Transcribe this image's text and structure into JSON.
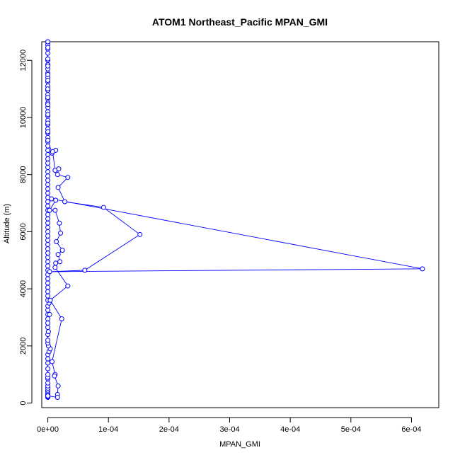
{
  "chart_data": {
    "type": "line",
    "title": "ATOM1 Northeast_Pacific MPAN_GMI",
    "xlabel": "MPAN_GMI",
    "ylabel": "Altitude (m)",
    "xlim": [
      -1e-05,
      0.000645
    ],
    "ylim": [
      -160,
      12650
    ],
    "x_ticks": [
      0,
      0.0001,
      0.0002,
      0.0003,
      0.0004,
      0.0005,
      0.0006
    ],
    "x_tick_labels": [
      "0e+00",
      "1e-04",
      "2e-04",
      "3e-04",
      "4e-04",
      "5e-04",
      "6e-04"
    ],
    "y_ticks": [
      0,
      2000,
      4000,
      6000,
      8000,
      10000,
      12000
    ],
    "y_tick_labels": [
      "0",
      "2000",
      "4000",
      "6000",
      "8000",
      "10000",
      "12000"
    ],
    "marker": "open-circle",
    "grid": false,
    "series": [
      {
        "color": "#0000ff",
        "points": [
          [
            0.0,
            200
          ],
          [
            0.0,
            220
          ],
          [
            0.0,
            260
          ],
          [
            0.0,
            300
          ],
          [
            0.0,
            350
          ],
          [
            0.0,
            400
          ],
          [
            0.0,
            450
          ],
          [
            0.0,
            520
          ],
          [
            0.0,
            600
          ],
          [
            0.0,
            700
          ],
          [
            0.0,
            850
          ],
          [
            0.0,
            900
          ],
          [
            0.0,
            1000
          ],
          [
            0.0,
            1200
          ],
          [
            0.0,
            1400
          ],
          [
            0.0,
            1550
          ],
          [
            0.0,
            1700
          ],
          [
            2e-06,
            1800
          ],
          [
            4e-06,
            1900
          ],
          [
            1e-06,
            2000
          ],
          [
            0.0,
            2100
          ],
          [
            0.0,
            2200
          ],
          [
            0.0,
            2400
          ],
          [
            1e-06,
            2500
          ],
          [
            0.0,
            2650
          ],
          [
            0.0,
            2800
          ],
          [
            0.0,
            2950
          ],
          [
            0.0,
            3100
          ],
          [
            3e-06,
            3100
          ],
          [
            0.0,
            3250
          ],
          [
            0.0,
            3400
          ],
          [
            2e-06,
            3500
          ],
          [
            0.0,
            3600
          ],
          [
            0.0,
            3750
          ],
          [
            0.0,
            3900
          ],
          [
            0.0,
            4050
          ],
          [
            0.0,
            4200
          ],
          [
            0.0,
            4350
          ],
          [
            0.0,
            4500
          ],
          [
            0.0,
            4650
          ],
          [
            0.0,
            4800
          ],
          [
            0.0,
            4950
          ],
          [
            0.0,
            5100
          ],
          [
            0.0,
            5250
          ],
          [
            0.0,
            5400
          ],
          [
            0.0,
            5550
          ],
          [
            0.0,
            5700
          ],
          [
            0.0,
            5850
          ],
          [
            0.0,
            6000
          ],
          [
            0.0,
            6150
          ],
          [
            0.0,
            6300
          ],
          [
            0.0,
            6450
          ],
          [
            0.0,
            6600
          ],
          [
            0.0,
            6750
          ],
          [
            0.0,
            6900
          ],
          [
            0.0,
            7050
          ],
          [
            0.0,
            7200
          ],
          [
            0.0,
            7350
          ],
          [
            0.0,
            7500
          ],
          [
            0.0,
            7650
          ],
          [
            0.0,
            7800
          ],
          [
            0.0,
            7950
          ],
          [
            0.0,
            8100
          ],
          [
            0.0,
            8250
          ],
          [
            0.0,
            8400
          ],
          [
            0.0,
            8550
          ],
          [
            0.0,
            8700
          ],
          [
            0.0,
            8850
          ],
          [
            0.0,
            9000
          ],
          [
            0.0,
            9150
          ],
          [
            0.0,
            9300
          ],
          [
            0.0,
            9450
          ],
          [
            0.0,
            9600
          ],
          [
            0.0,
            9750
          ],
          [
            0.0,
            9900
          ],
          [
            0.0,
            10050
          ],
          [
            0.0,
            10200
          ],
          [
            0.0,
            10350
          ],
          [
            0.0,
            10500
          ],
          [
            0.0,
            10650
          ],
          [
            0.0,
            10800
          ],
          [
            0.0,
            10950
          ],
          [
            0.0,
            11100
          ],
          [
            0.0,
            11250
          ],
          [
            0.0,
            11400
          ],
          [
            0.0,
            11550
          ],
          [
            0.0,
            11700
          ],
          [
            0.0,
            11850
          ],
          [
            0.0,
            12000
          ],
          [
            0.0,
            12250
          ],
          [
            0.0,
            12400
          ],
          [
            0.0,
            12550
          ],
          [
            0.0,
            12650
          ],
          [
            0.0,
            12650
          ],
          [
            0.0,
            12450
          ],
          [
            0.0,
            12050
          ],
          [
            0.0,
            11800
          ],
          [
            0.0,
            11500
          ],
          [
            0.0,
            11300
          ],
          [
            0.0,
            11000
          ],
          [
            0.0,
            10700
          ],
          [
            0.0,
            10450
          ],
          [
            0.0,
            10100
          ],
          [
            0.0,
            9800
          ],
          [
            0.0,
            9500
          ],
          [
            0.0,
            9200
          ],
          [
            7e-06,
            8750
          ],
          [
            1.3e-05,
            8850
          ],
          [
            8e-06,
            8800
          ],
          [
            1.2e-05,
            8150
          ],
          [
            1.8e-05,
            8200
          ],
          [
            1.6e-05,
            8000
          ],
          [
            3.3e-05,
            7900
          ],
          [
            1.7e-05,
            7550
          ],
          [
            2.8e-05,
            7050
          ],
          [
            9.2e-05,
            6850
          ],
          [
            0.000152,
            5900
          ],
          [
            6.1e-05,
            4650
          ],
          [
            3e-06,
            4600
          ],
          [
            0.000618,
            4700
          ],
          [
            6e-06,
            7150
          ],
          [
            1.3e-05,
            7100
          ],
          [
            3e-06,
            6750
          ],
          [
            1.2e-05,
            6750
          ],
          [
            1.9e-05,
            6300
          ],
          [
            2.1e-05,
            5950
          ],
          [
            1.4e-05,
            5650
          ],
          [
            2.4e-05,
            5350
          ],
          [
            1.7e-05,
            5200
          ],
          [
            2e-05,
            4950
          ],
          [
            1.3e-05,
            4900
          ],
          [
            1.2e-05,
            4750
          ],
          [
            3.3e-05,
            4100
          ],
          [
            4e-06,
            3600
          ],
          [
            2.3e-05,
            2950
          ],
          [
            7e-06,
            1450
          ],
          [
            1.2e-05,
            1000
          ],
          [
            1.1e-05,
            950
          ],
          [
            1.7e-05,
            600
          ],
          [
            1.6e-05,
            300
          ],
          [
            1.6e-05,
            200
          ],
          [
            0.0,
            250
          ]
        ]
      }
    ]
  }
}
